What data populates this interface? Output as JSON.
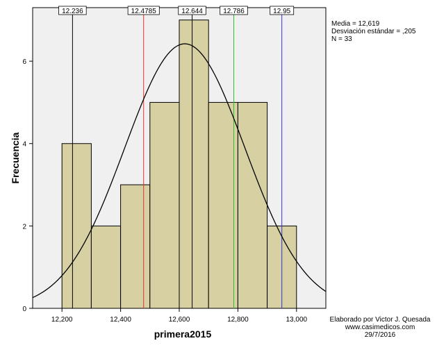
{
  "stats": {
    "mean": "Media = 12,619",
    "sd": "Desviación estándar = ,205",
    "n": "N = 33"
  },
  "credit": {
    "author": "Elaborado por Victor J. Quesada",
    "site": "www.casimedicos.com",
    "date": "29/7/2016"
  },
  "chart_data": {
    "type": "bar",
    "title": "",
    "xlabel": "primera2015",
    "ylabel": "Frecuencia",
    "xlim": [
      12.1,
      13.1
    ],
    "ylim": [
      0,
      7.3
    ],
    "x_ticks": [
      12.2,
      12.4,
      12.6,
      12.8,
      13.0
    ],
    "x_tick_labels": [
      "12,200",
      "12,400",
      "12,600",
      "12,800",
      "13,000"
    ],
    "y_ticks": [
      0,
      2,
      4,
      6
    ],
    "y_tick_labels": [
      "0",
      "2",
      "4",
      "6"
    ],
    "bins": [
      {
        "start": 12.2,
        "end": 12.3,
        "count": 4
      },
      {
        "start": 12.3,
        "end": 12.4,
        "count": 2
      },
      {
        "start": 12.4,
        "end": 12.5,
        "count": 3
      },
      {
        "start": 12.5,
        "end": 12.6,
        "count": 5
      },
      {
        "start": 12.6,
        "end": 12.7,
        "count": 7
      },
      {
        "start": 12.7,
        "end": 12.8,
        "count": 5
      },
      {
        "start": 12.8,
        "end": 12.9,
        "count": 5
      },
      {
        "start": 12.9,
        "end": 13.0,
        "count": 2
      }
    ],
    "normal_curve": {
      "mean": 12.619,
      "sd": 0.205,
      "n": 33,
      "bin_width": 0.1
    },
    "reference_lines": [
      {
        "value": 12.236,
        "label": "12.236",
        "color": "#000000"
      },
      {
        "value": 12.4785,
        "label": "12.4785",
        "color": "#e03030"
      },
      {
        "value": 12.644,
        "label": "12.644",
        "color": "#000000"
      },
      {
        "value": 12.786,
        "label": "12.786",
        "color": "#30c030"
      },
      {
        "value": 12.95,
        "label": "12.95",
        "color": "#3030e0"
      }
    ],
    "colors": {
      "bar_fill": "#d6d0a2",
      "bar_stroke": "#000000",
      "plot_bg": "#f0f0f0",
      "curve": "#000000"
    },
    "grid": false
  }
}
